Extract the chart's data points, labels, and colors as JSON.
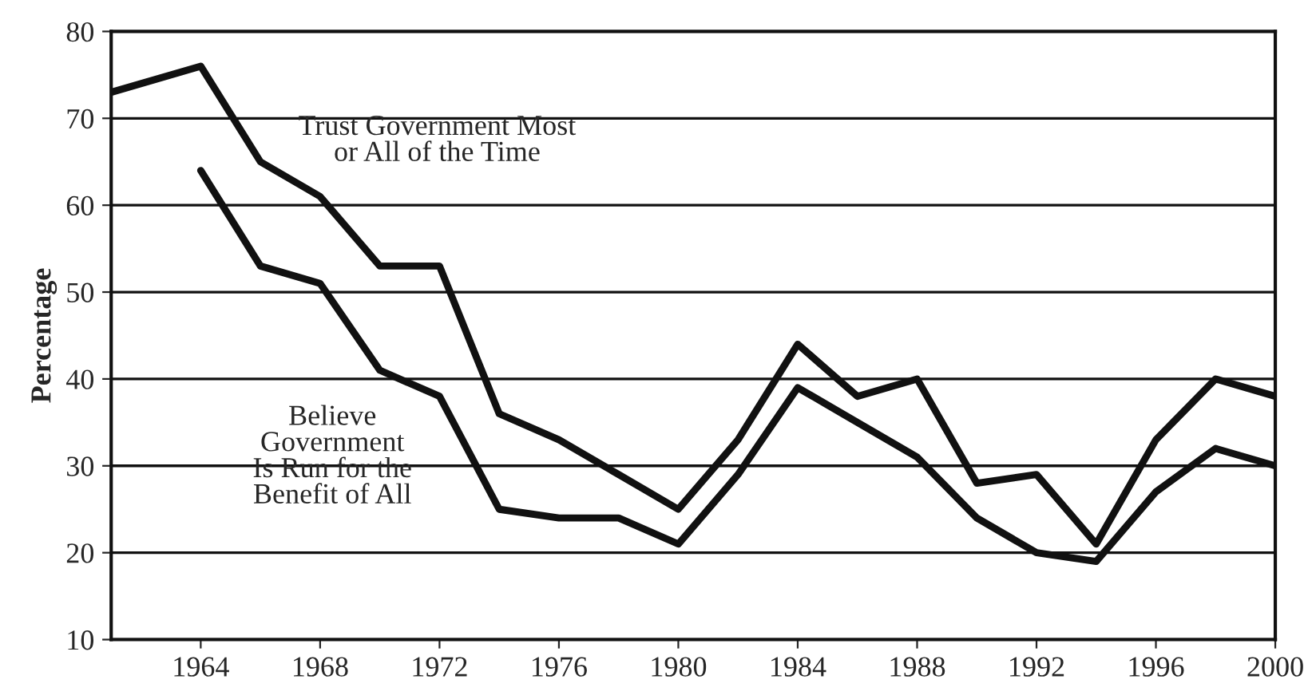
{
  "chart_data": {
    "type": "line",
    "ylabel": "Percentage",
    "series": [
      {
        "color": "#111111",
        "x": [
          1961,
          1964,
          1966,
          1968,
          1970,
          1972,
          1974,
          1976,
          1978,
          1980,
          1982,
          1984,
          1986,
          1988,
          1990,
          1992,
          1994,
          1996,
          1998,
          2000
        ],
        "values": [
          73,
          76,
          65,
          61,
          53,
          53,
          36,
          33,
          29,
          25,
          33,
          44,
          38,
          40,
          28,
          29,
          21,
          33,
          40,
          38
        ]
      },
      {
        "color": "#111111",
        "x": [
          1964,
          1966,
          1968,
          1970,
          1972,
          1974,
          1976,
          1978,
          1980,
          1982,
          1984,
          1986,
          1988,
          1990,
          1992,
          1994,
          1996,
          1998,
          2000
        ],
        "values": [
          64,
          53,
          51,
          41,
          38,
          25,
          24,
          24,
          21,
          29,
          39,
          35,
          31,
          24,
          20,
          19,
          27,
          32,
          30
        ]
      }
    ],
    "annotations": [
      "Trust Government Most\nor All of the Time",
      "Believe\nGovernment\nIs Run for the\nBenefit of All"
    ],
    "xlim": [
      1961,
      2000
    ],
    "xticks": [
      1964,
      1968,
      1972,
      1976,
      1980,
      1984,
      1988,
      1992,
      1996,
      2000
    ],
    "ylim": [
      10,
      80
    ],
    "yticks": [
      10,
      20,
      30,
      40,
      50,
      60,
      70,
      80
    ],
    "grid": "y",
    "legend": false,
    "line_style": "solid",
    "marker": "none"
  }
}
